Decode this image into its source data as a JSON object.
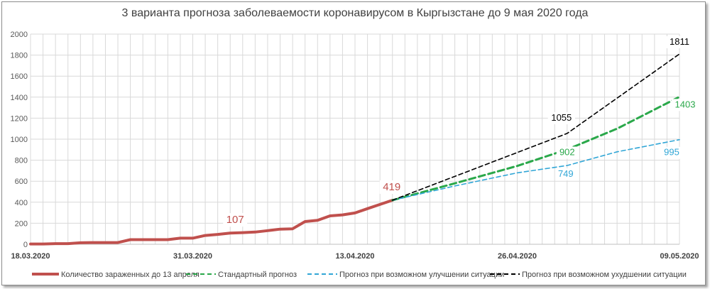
{
  "chart_data": {
    "type": "line",
    "title": "3 варианта прогноза заболеваемости коронавирусом в Кыргызстане до 9 мая 2020 года",
    "xlabel": "",
    "ylabel": "",
    "x_range": [
      "2020-03-18",
      "2020-05-09"
    ],
    "x_tick_labels": [
      "18.03.2020",
      "31.03.2020",
      "13.04.2020",
      "26.04.2020",
      "09.05.2020"
    ],
    "x_tick_dates": [
      "2020-03-18",
      "2020-03-31",
      "2020-04-13",
      "2020-04-26",
      "2020-05-09"
    ],
    "ylim": [
      0,
      2000
    ],
    "y_ticks": [
      0,
      200,
      400,
      600,
      800,
      1000,
      1200,
      1400,
      1600,
      1800,
      2000
    ],
    "grid": true,
    "legend_position": "bottom",
    "series": [
      {
        "name": "Количество зараженных до 13 апреля",
        "color": "#c0504d",
        "style": "solid",
        "points": [
          [
            "2020-03-18",
            3
          ],
          [
            "2020-03-19",
            3
          ],
          [
            "2020-03-20",
            6
          ],
          [
            "2020-03-21",
            6
          ],
          [
            "2020-03-22",
            14
          ],
          [
            "2020-03-23",
            16
          ],
          [
            "2020-03-24",
            16
          ],
          [
            "2020-03-25",
            16
          ],
          [
            "2020-03-26",
            44
          ],
          [
            "2020-03-27",
            44
          ],
          [
            "2020-03-28",
            44
          ],
          [
            "2020-03-29",
            44
          ],
          [
            "2020-03-30",
            58
          ],
          [
            "2020-03-31",
            58
          ],
          [
            "2020-04-01",
            84
          ],
          [
            "2020-04-02",
            94
          ],
          [
            "2020-04-03",
            107
          ],
          [
            "2020-04-04",
            111
          ],
          [
            "2020-04-05",
            116
          ],
          [
            "2020-04-06",
            130
          ],
          [
            "2020-04-07",
            144
          ],
          [
            "2020-04-08",
            147
          ],
          [
            "2020-04-09",
            216
          ],
          [
            "2020-04-10",
            228
          ],
          [
            "2020-04-11",
            270
          ],
          [
            "2020-04-12",
            280
          ],
          [
            "2020-04-13",
            298
          ],
          [
            "2020-04-14",
            339
          ],
          [
            "2020-04-15",
            379
          ],
          [
            "2020-04-16",
            419
          ]
        ]
      },
      {
        "name": "Стандартный прогноз",
        "color": "#2aa84a",
        "style": "dashed",
        "points": [
          [
            "2020-04-16",
            419
          ],
          [
            "2020-04-21",
            580
          ],
          [
            "2020-04-26",
            745
          ],
          [
            "2020-04-30",
            902
          ],
          [
            "2020-05-04",
            1100
          ],
          [
            "2020-05-09",
            1403
          ]
        ]
      },
      {
        "name": "Прогноз при возможном улучшении ситуации",
        "color": "#31a6d6",
        "style": "dashed",
        "points": [
          [
            "2020-04-16",
            419
          ],
          [
            "2020-04-21",
            555
          ],
          [
            "2020-04-26",
            680
          ],
          [
            "2020-04-30",
            749
          ],
          [
            "2020-05-04",
            880
          ],
          [
            "2020-05-09",
            995
          ]
        ]
      },
      {
        "name": "Прогноз при возможном ухудшении ситуации",
        "color": "#000000",
        "style": "dashed",
        "points": [
          [
            "2020-04-16",
            419
          ],
          [
            "2020-04-30",
            1055
          ],
          [
            "2020-05-09",
            1811
          ]
        ]
      }
    ],
    "annotations": [
      {
        "text": "107",
        "date": "2020-04-03",
        "value": 107,
        "color": "#c0504d"
      },
      {
        "text": "419",
        "date": "2020-04-16",
        "value": 419,
        "color": "#c0504d"
      },
      {
        "text": "1055",
        "date": "2020-04-30",
        "value": 1055,
        "color": "#000000"
      },
      {
        "text": "1811",
        "date": "2020-05-09",
        "value": 1811,
        "color": "#000000"
      },
      {
        "text": "902",
        "date": "2020-04-30",
        "value": 902,
        "color": "#2aa84a"
      },
      {
        "text": "1403",
        "date": "2020-05-09",
        "value": 1403,
        "color": "#2aa84a"
      },
      {
        "text": "749",
        "date": "2020-04-30",
        "value": 749,
        "color": "#31a6d6"
      },
      {
        "text": "995",
        "date": "2020-05-09",
        "value": 995,
        "color": "#31a6d6"
      }
    ]
  }
}
